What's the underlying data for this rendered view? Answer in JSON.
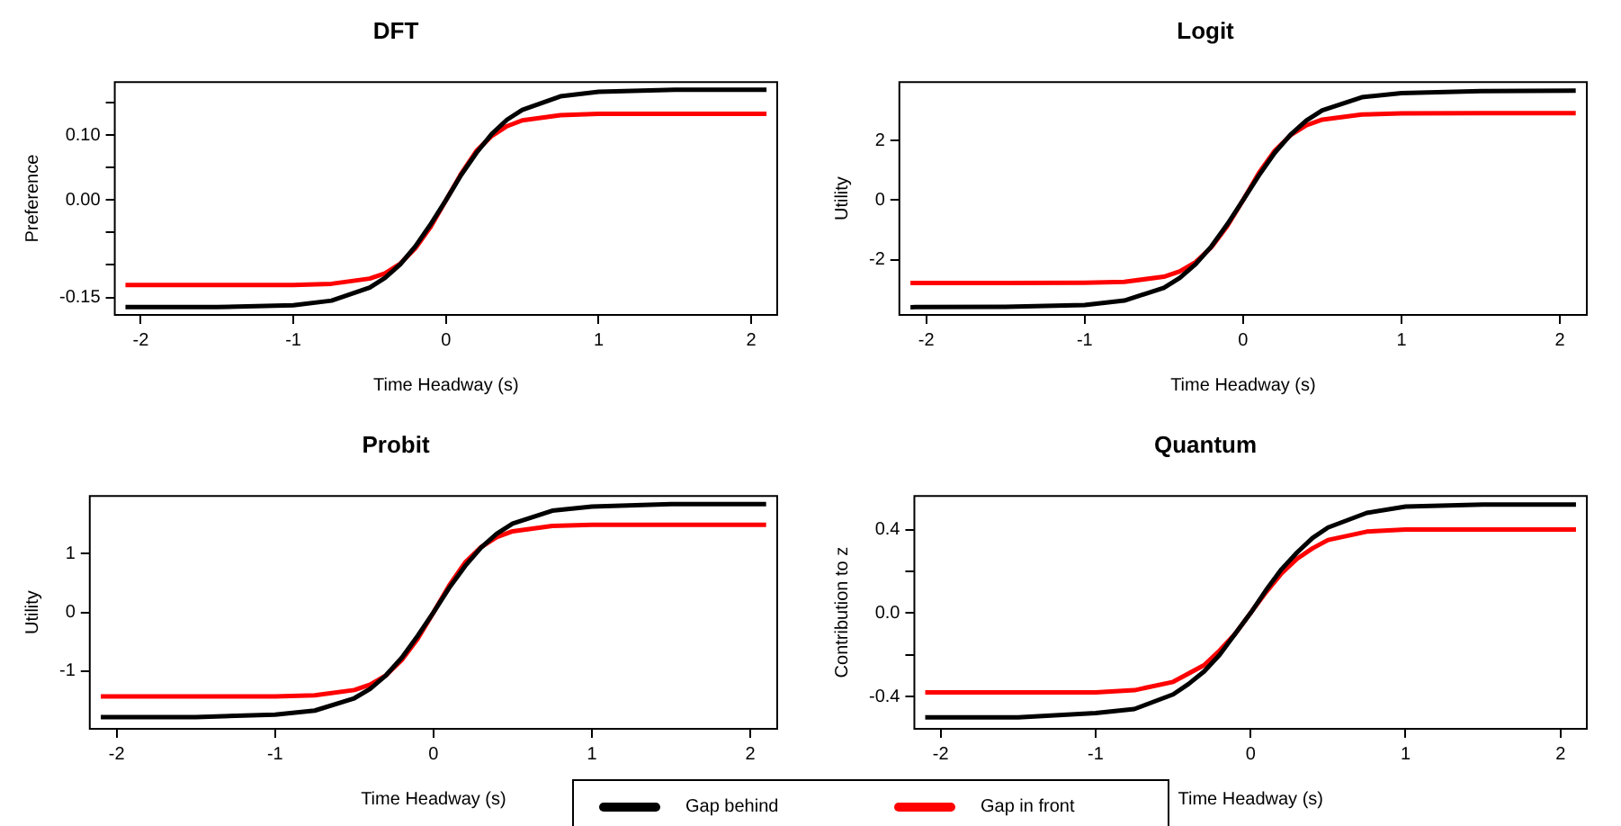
{
  "chart_data": [
    {
      "type": "line",
      "title": "DFT",
      "xlabel": "Time Headway (s)",
      "ylabel": "Preference",
      "x": [
        -2.1,
        -1.5,
        -1,
        -0.75,
        -0.5,
        -0.4,
        -0.3,
        -0.2,
        -0.1,
        0,
        0.1,
        0.2,
        0.3,
        0.4,
        0.5,
        0.75,
        1,
        1.5,
        2.1
      ],
      "series": [
        {
          "name": "Gap behind",
          "color": "#000000",
          "values": [
            -0.165,
            -0.165,
            -0.162,
            -0.155,
            -0.135,
            -0.12,
            -0.099,
            -0.071,
            -0.037,
            0,
            0.039,
            0.073,
            0.102,
            0.124,
            0.139,
            0.16,
            0.167,
            0.17,
            0.17
          ]
        },
        {
          "name": "Gap in front",
          "color": "#ff0000",
          "values": [
            -0.131,
            -0.131,
            -0.131,
            -0.129,
            -0.121,
            -0.113,
            -0.098,
            -0.074,
            -0.041,
            0,
            0.041,
            0.076,
            0.099,
            0.114,
            0.123,
            0.131,
            0.133,
            0.133,
            0.133
          ]
        }
      ],
      "xlim": [
        -2.17,
        2.17
      ],
      "xticks": [
        -2,
        -1,
        0,
        1,
        2
      ],
      "ylim": [
        -0.177,
        0.182
      ],
      "yticks": [
        -0.15,
        {
          "value": -0.1,
          "label": null
        },
        {
          "value": -0.05,
          "label": null
        },
        {
          "value": 0,
          "label": "0.00"
        },
        {
          "value": 0.05,
          "label": null
        },
        {
          "value": 0.1,
          "label": "0.10"
        },
        {
          "value": 0.15,
          "label": null
        }
      ],
      "grid": false,
      "legend": "bottom",
      "line_style": "solid",
      "marker": "none"
    },
    {
      "type": "line",
      "title": "Logit",
      "xlabel": "Time Headway (s)",
      "ylabel": "Utility",
      "x": [
        -2.1,
        -1.5,
        -1,
        -0.75,
        -0.5,
        -0.4,
        -0.3,
        -0.2,
        -0.1,
        0,
        0.1,
        0.2,
        0.3,
        0.4,
        0.5,
        0.75,
        1,
        1.5,
        2.1
      ],
      "series": [
        {
          "color": "#000000",
          "values": [
            -3.59,
            -3.58,
            -3.52,
            -3.37,
            -2.94,
            -2.61,
            -2.15,
            -1.55,
            -0.81,
            0,
            0.83,
            1.59,
            2.2,
            2.67,
            3.01,
            3.45,
            3.59,
            3.66,
            3.67
          ]
        },
        {
          "color": "#ff0000",
          "values": [
            -2.78,
            -2.78,
            -2.77,
            -2.74,
            -2.57,
            -2.39,
            -2.08,
            -1.58,
            -0.87,
            0,
            0.91,
            1.66,
            2.18,
            2.51,
            2.7,
            2.87,
            2.91,
            2.92,
            2.92
          ]
        }
      ],
      "xlim": [
        -2.17,
        2.17
      ],
      "xticks": [
        -2,
        -1,
        0,
        1,
        2
      ],
      "ylim": [
        -3.85,
        3.96
      ],
      "yticks": [
        -2,
        0,
        2
      ],
      "grid": false,
      "line_style": "solid",
      "marker": "none"
    },
    {
      "type": "line",
      "title": "Probit",
      "xlabel": "Time Headway (s)",
      "ylabel": "Utility",
      "x": [
        -2.1,
        -1.5,
        -1,
        -0.75,
        -0.5,
        -0.4,
        -0.3,
        -0.2,
        -0.1,
        0,
        0.1,
        0.2,
        0.3,
        0.4,
        0.5,
        0.75,
        1,
        1.5,
        2.1
      ],
      "series": [
        {
          "color": "#000000",
          "values": [
            -1.78,
            -1.78,
            -1.74,
            -1.67,
            -1.46,
            -1.3,
            -1.07,
            -0.77,
            -0.4,
            0,
            0.42,
            0.79,
            1.1,
            1.34,
            1.51,
            1.73,
            1.8,
            1.84,
            1.84
          ]
        },
        {
          "color": "#ff0000",
          "values": [
            -1.43,
            -1.43,
            -1.43,
            -1.41,
            -1.32,
            -1.23,
            -1.07,
            -0.81,
            -0.45,
            0,
            0.46,
            0.85,
            1.11,
            1.28,
            1.38,
            1.47,
            1.49,
            1.49,
            1.49
          ]
        }
      ],
      "xlim": [
        -2.17,
        2.17
      ],
      "xticks": [
        -2,
        -1,
        0,
        1,
        2
      ],
      "ylim": [
        -1.98,
        1.98
      ],
      "yticks": [
        -1,
        0,
        1
      ],
      "grid": false,
      "line_style": "solid",
      "marker": "none"
    },
    {
      "type": "line",
      "title": "Quantum",
      "xlabel": "Time Headway (s)",
      "ylabel": "Contribution to z",
      "x": [
        -2.1,
        -1.5,
        -1,
        -0.75,
        -0.5,
        -0.4,
        -0.3,
        -0.2,
        -0.1,
        0,
        0.1,
        0.2,
        0.3,
        0.4,
        0.5,
        0.75,
        1,
        1.5,
        2.1
      ],
      "series": [
        {
          "color": "#000000",
          "values": [
            -0.5,
            -0.5,
            -0.48,
            -0.46,
            -0.39,
            -0.34,
            -0.28,
            -0.2,
            -0.1,
            0,
            0.11,
            0.21,
            0.29,
            0.36,
            0.41,
            0.48,
            0.51,
            0.52,
            0.52
          ]
        },
        {
          "color": "#ff0000",
          "values": [
            -0.38,
            -0.38,
            -0.38,
            -0.37,
            -0.33,
            -0.29,
            -0.25,
            -0.18,
            -0.1,
            0,
            0.1,
            0.19,
            0.26,
            0.31,
            0.35,
            0.39,
            0.4,
            0.4,
            0.4
          ]
        }
      ],
      "yticks": [
        {
          "value": -0.4,
          "label": "-0.4"
        },
        {
          "value": -0.2,
          "label": null
        },
        {
          "value": 0,
          "label": "0.0"
        },
        {
          "value": 0.2,
          "label": null
        },
        {
          "value": 0.4,
          "label": "0.4"
        }
      ],
      "xlim": [
        -2.17,
        2.17
      ],
      "xticks": [
        -2,
        -1,
        0,
        1,
        2
      ],
      "ylim": [
        -0.555,
        0.561
      ],
      "grid": false,
      "line_style": "solid",
      "marker": "none"
    }
  ]
}
